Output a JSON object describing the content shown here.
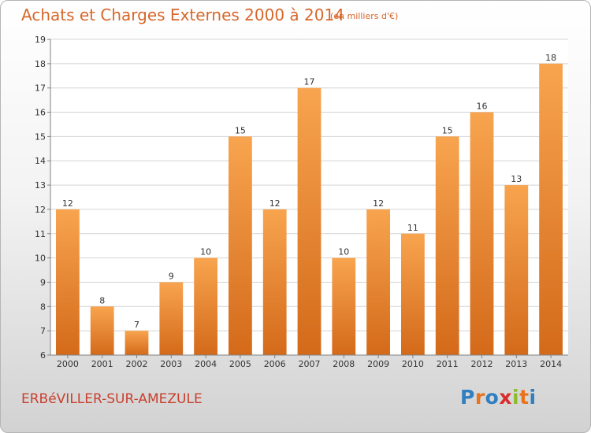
{
  "title": "Achats et Charges Externes 2000 à 2014",
  "unit_label": "(en milliers d'€)",
  "location": "ERBéVILLER-SUR-AMEZULE",
  "logo": {
    "text": "Proxiti",
    "letters": [
      "P",
      "r",
      "o",
      "x",
      "i",
      "t",
      "i"
    ],
    "colors": [
      "#2f7fc1",
      "#e8731c",
      "#2f7fc1",
      "#d92b2b",
      "#8dbb2e",
      "#e8731c",
      "#2f7fc1"
    ]
  },
  "colors": {
    "title": "#d7672a",
    "location": "#c8402e",
    "bar_top": "#f8a44f",
    "bar_bottom": "#d36a1a",
    "grid": "#d4d4d4",
    "axis": "#808080",
    "label": "#333333"
  },
  "chart_data": {
    "type": "bar",
    "title": "Achats et Charges Externes 2000 à 2014",
    "subtitle": "(en milliers d'€)",
    "categories": [
      "2000",
      "2001",
      "2002",
      "2003",
      "2004",
      "2005",
      "2006",
      "2007",
      "2008",
      "2009",
      "2010",
      "2011",
      "2012",
      "2013",
      "2014"
    ],
    "values": [
      12,
      8,
      7,
      9,
      10,
      15,
      12,
      17,
      10,
      12,
      11,
      15,
      16,
      13,
      18
    ],
    "ylim": [
      6,
      19
    ],
    "yticks": [
      6,
      7,
      8,
      9,
      10,
      11,
      12,
      13,
      14,
      15,
      16,
      17,
      18,
      19
    ],
    "grid": true,
    "data_labels": true,
    "legend": "none",
    "xlabel": "",
    "ylabel": ""
  }
}
